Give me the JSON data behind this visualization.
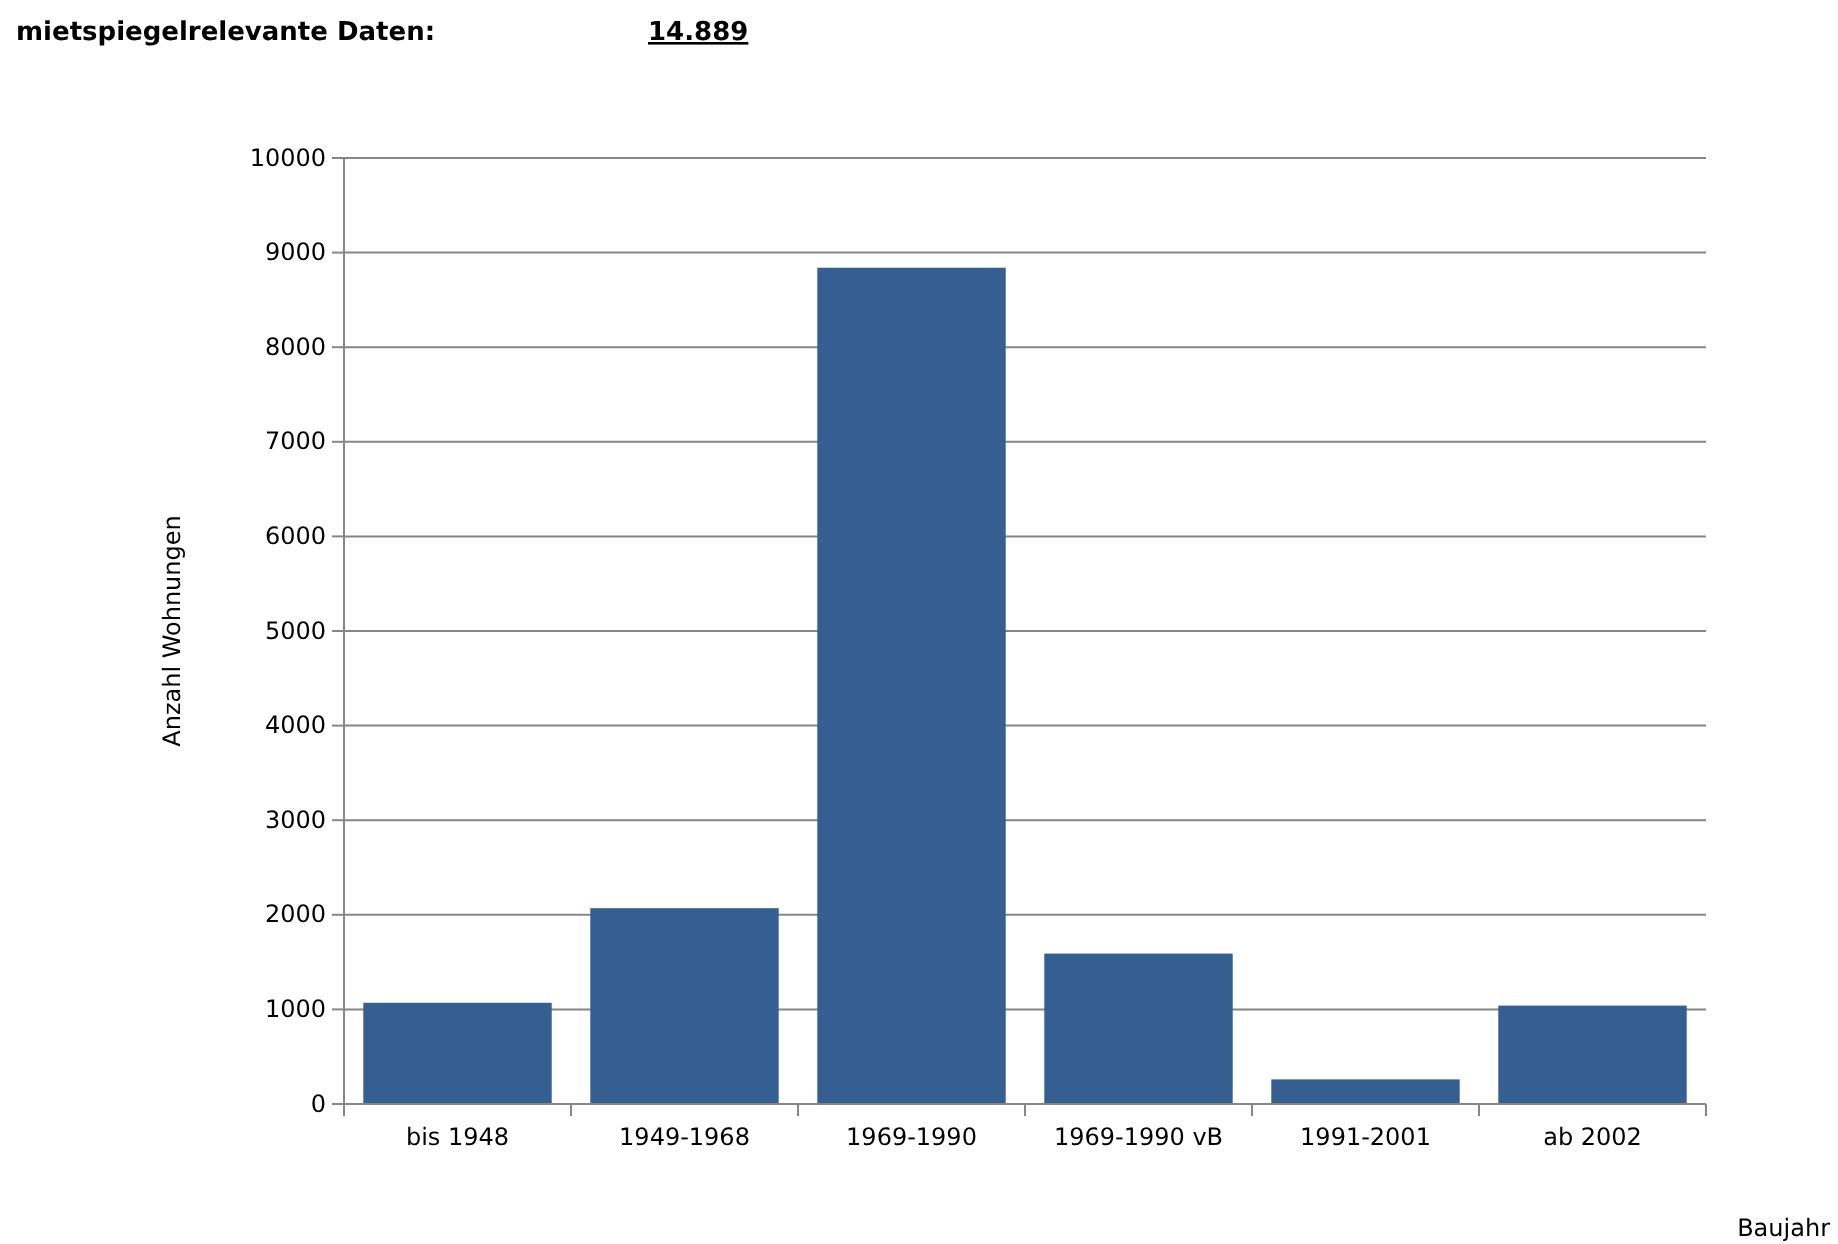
{
  "chart_data": {
    "type": "bar",
    "title": "mietspiegelrelevante Daten:",
    "subtitle": "14.889",
    "xlabel": "Baujahr",
    "ylabel": "Anzahl Wohnungen",
    "categories": [
      "bis 1948",
      "1949-1968",
      "1969-1990",
      "1969-1990 vB",
      "1991-2001",
      "ab 2002"
    ],
    "values": [
      1070,
      2070,
      8840,
      1590,
      260,
      1040
    ],
    "color": "#365f91",
    "ylim": [
      0,
      10000
    ],
    "yticks": [
      0,
      1000,
      2000,
      3000,
      4000,
      5000,
      6000,
      7000,
      8000,
      9000,
      10000
    ],
    "grid": "y"
  }
}
